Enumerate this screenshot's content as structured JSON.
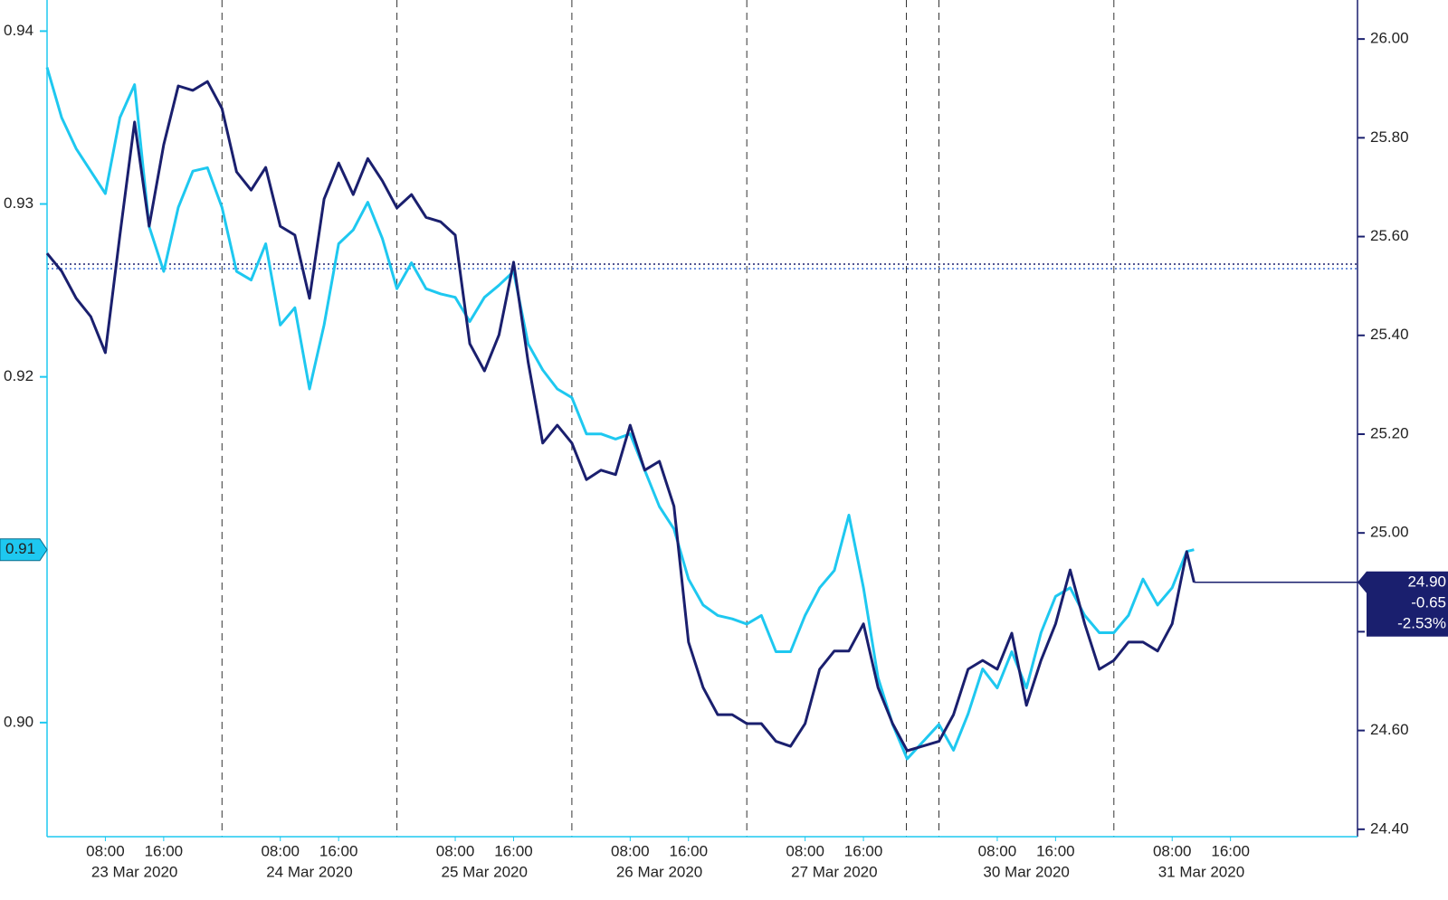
{
  "chart_data": {
    "type": "line",
    "x": [
      "2020-03-23 00:00",
      "2020-03-23 02:00",
      "2020-03-23 04:00",
      "2020-03-23 06:00",
      "2020-03-23 08:00",
      "2020-03-23 10:00",
      "2020-03-23 12:00",
      "2020-03-23 14:00",
      "2020-03-23 16:00",
      "2020-03-23 18:00",
      "2020-03-23 20:00",
      "2020-03-23 22:00",
      "2020-03-24 00:00",
      "2020-03-24 02:00",
      "2020-03-24 04:00",
      "2020-03-24 06:00",
      "2020-03-24 08:00",
      "2020-03-24 10:00",
      "2020-03-24 12:00",
      "2020-03-24 14:00",
      "2020-03-24 16:00",
      "2020-03-24 18:00",
      "2020-03-24 20:00",
      "2020-03-24 22:00",
      "2020-03-25 00:00",
      "2020-03-25 02:00",
      "2020-03-25 04:00",
      "2020-03-25 06:00",
      "2020-03-25 08:00",
      "2020-03-25 10:00",
      "2020-03-25 12:00",
      "2020-03-25 14:00",
      "2020-03-25 16:00",
      "2020-03-25 18:00",
      "2020-03-25 20:00",
      "2020-03-25 22:00",
      "2020-03-26 00:00",
      "2020-03-26 02:00",
      "2020-03-26 04:00",
      "2020-03-26 06:00",
      "2020-03-26 08:00",
      "2020-03-26 10:00",
      "2020-03-26 12:00",
      "2020-03-26 14:00",
      "2020-03-26 16:00",
      "2020-03-26 18:00",
      "2020-03-26 20:00",
      "2020-03-26 22:00",
      "2020-03-27 00:00",
      "2020-03-27 02:00",
      "2020-03-27 04:00",
      "2020-03-27 06:00",
      "2020-03-27 08:00",
      "2020-03-27 10:00",
      "2020-03-27 12:00",
      "2020-03-27 14:00",
      "2020-03-27 16:00",
      "2020-03-27 18:00",
      "2020-03-27 20:00",
      "2020-03-27 22:00",
      "2020-03-30 00:00",
      "2020-03-30 02:00",
      "2020-03-30 04:00",
      "2020-03-30 06:00",
      "2020-03-30 08:00",
      "2020-03-30 10:00",
      "2020-03-30 12:00",
      "2020-03-30 14:00",
      "2020-03-30 16:00",
      "2020-03-30 18:00",
      "2020-03-30 20:00",
      "2020-03-30 22:00",
      "2020-03-31 00:00",
      "2020-03-31 02:00",
      "2020-03-31 04:00",
      "2020-03-31 06:00",
      "2020-03-31 08:00",
      "2020-03-31 10:00",
      "2020-03-31 11:00"
    ],
    "series": [
      {
        "color": "#1ec8f0",
        "axis": "y",
        "values": [
          0.9379,
          0.935,
          0.9332,
          0.9319,
          0.9306,
          0.935,
          0.9369,
          0.9287,
          0.9261,
          0.9298,
          0.9319,
          0.9321,
          0.9298,
          0.9261,
          0.9256,
          0.9277,
          0.923,
          0.924,
          0.9193,
          0.923,
          0.9277,
          0.9285,
          0.9301,
          0.928,
          0.9251,
          0.9266,
          0.9251,
          0.9248,
          0.9246,
          0.9232,
          0.9246,
          0.9253,
          0.9261,
          0.9219,
          0.9204,
          0.9193,
          0.9188,
          0.9167,
          0.9167,
          0.9164,
          0.9167,
          0.9146,
          0.9125,
          0.9112,
          0.9083,
          0.9068,
          0.9062,
          0.906,
          0.9057,
          0.9062,
          0.9041,
          0.9041,
          0.9062,
          0.9078,
          0.9088,
          0.912,
          0.9078,
          0.9026,
          0.8999,
          0.8979,
          0.8999,
          0.8984,
          0.9005,
          0.9031,
          0.902,
          0.9041,
          0.902,
          0.9052,
          0.9073,
          0.9078,
          0.9062,
          0.9052,
          0.9052,
          0.9062,
          0.9083,
          0.9068,
          0.9078,
          0.9099,
          0.91
        ]
      },
      {
        "color": "#1a1f6e",
        "axis": "y2",
        "values": [
          25.566,
          25.53,
          25.475,
          25.438,
          25.365,
          25.603,
          25.832,
          25.621,
          25.786,
          25.905,
          25.896,
          25.914,
          25.859,
          25.731,
          25.694,
          25.74,
          25.621,
          25.603,
          25.475,
          25.676,
          25.749,
          25.685,
          25.758,
          25.713,
          25.658,
          25.685,
          25.639,
          25.63,
          25.603,
          25.383,
          25.328,
          25.401,
          25.548,
          25.346,
          25.182,
          25.218,
          25.182,
          25.108,
          25.127,
          25.118,
          25.218,
          25.127,
          25.145,
          25.054,
          24.779,
          24.687,
          24.632,
          24.632,
          24.614,
          24.614,
          24.578,
          24.568,
          24.614,
          24.724,
          24.761,
          24.761,
          24.816,
          24.687,
          24.614,
          24.559,
          24.578,
          24.632,
          24.724,
          24.742,
          24.724,
          24.797,
          24.651,
          24.742,
          24.816,
          24.925,
          24.816,
          24.724,
          24.742,
          24.779,
          24.779,
          24.761,
          24.816,
          24.962,
          24.9
        ]
      }
    ],
    "ylim": [
      0.8934,
      0.9418
    ],
    "yticks": [
      0.94,
      0.93,
      0.92,
      0.91,
      {
        "value": 0.9,
        "label": "0.90"
      }
    ],
    "y2lim": [
      24.385,
      26.079
    ],
    "y2ticks": [
      {
        "value": 26,
        "label": "26.00"
      },
      {
        "value": 25.8,
        "label": "25.80"
      },
      {
        "value": 25.6,
        "label": "25.60"
      },
      {
        "value": 25.4,
        "label": "25.40"
      },
      {
        "value": 25.2,
        "label": "25.20"
      },
      {
        "value": 25,
        "label": "25.00"
      },
      {
        "value": 24.8,
        "label": "24.80"
      },
      {
        "value": 24.6,
        "label": "24.60"
      },
      {
        "value": 24.4,
        "label": "24.40"
      }
    ],
    "xticks": [
      {
        "value": "2020-03-23 08:00",
        "label": "08:00"
      },
      {
        "value": "2020-03-23 16:00",
        "label": "16:00"
      },
      {
        "value": "2020-03-24 08:00",
        "label": "08:00"
      },
      {
        "value": "2020-03-24 16:00",
        "label": "16:00"
      },
      {
        "value": "2020-03-25 08:00",
        "label": "08:00"
      },
      {
        "value": "2020-03-25 16:00",
        "label": "16:00"
      },
      {
        "value": "2020-03-26 08:00",
        "label": "08:00"
      },
      {
        "value": "2020-03-26 16:00",
        "label": "16:00"
      },
      {
        "value": "2020-03-27 08:00",
        "label": "08:00"
      },
      {
        "value": "2020-03-27 16:00",
        "label": "16:00"
      },
      {
        "value": "2020-03-30 08:00",
        "label": "08:00"
      },
      {
        "value": "2020-03-30 16:00",
        "label": "16:00"
      },
      {
        "value": "2020-03-31 08:00",
        "label": "08:00"
      },
      {
        "value": "2020-03-31 16:00",
        "label": "16:00"
      }
    ],
    "x_date_labels": [
      {
        "value": "2020-03-23 12:00",
        "label": "23 Mar 2020"
      },
      {
        "value": "2020-03-24 12:00",
        "label": "24 Mar 2020"
      },
      {
        "value": "2020-03-25 12:00",
        "label": "25 Mar 2020"
      },
      {
        "value": "2020-03-26 12:00",
        "label": "26 Mar 2020"
      },
      {
        "value": "2020-03-27 12:00",
        "label": "27 Mar 2020"
      },
      {
        "value": "2020-03-30 12:00",
        "label": "30 Mar 2020"
      },
      {
        "value": "2020-03-31 12:00",
        "label": "31 Mar 2020"
      }
    ],
    "last_value_left": "0.91",
    "last_value_right": [
      "24.90",
      "-0.65",
      "-2.53%"
    ]
  }
}
